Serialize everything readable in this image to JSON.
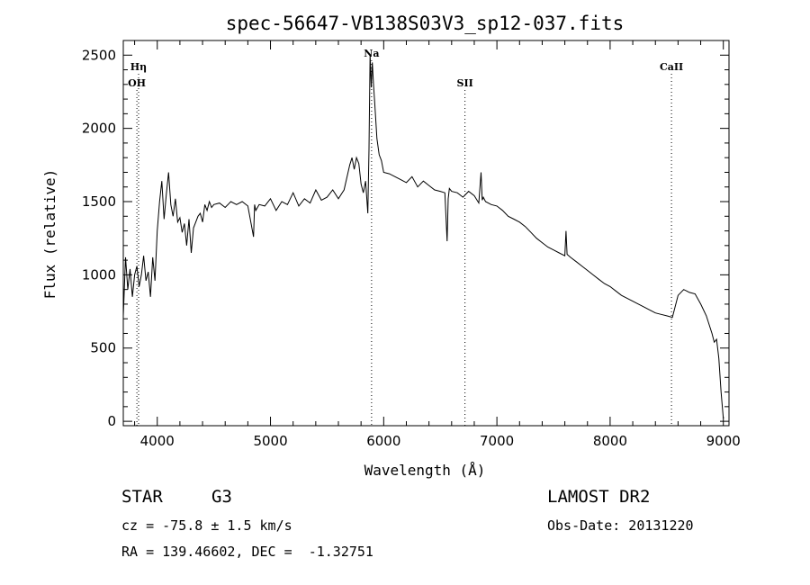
{
  "chart_data": {
    "type": "line",
    "title": "spec-56647-VB138S03V3_sp12-037.fits",
    "xlabel": "Wavelength (Å)",
    "ylabel": "Flux (relative)",
    "xlim": [
      3700,
      9050
    ],
    "ylim": [
      -30,
      2600
    ],
    "x_ticks": [
      4000,
      5000,
      6000,
      7000,
      8000,
      9000
    ],
    "y_ticks": [
      0,
      500,
      1000,
      1500,
      2000,
      2500
    ],
    "grid": false,
    "series": [
      {
        "x": [
          3700,
          3720,
          3740,
          3760,
          3780,
          3800,
          3820,
          3840,
          3860,
          3880,
          3900,
          3920,
          3940,
          3960,
          3980,
          4000,
          4020,
          4040,
          4060,
          4080,
          4100,
          4120,
          4140,
          4160,
          4180,
          4200,
          4220,
          4240,
          4260,
          4280,
          4300,
          4320,
          4340,
          4360,
          4380,
          4400,
          4420,
          4440,
          4460,
          4480,
          4500,
          4550,
          4600,
          4650,
          4700,
          4750,
          4800,
          4850,
          4860,
          4870,
          4900,
          4950,
          5000,
          5050,
          5100,
          5150,
          5200,
          5250,
          5300,
          5350,
          5400,
          5450,
          5500,
          5550,
          5600,
          5650,
          5700,
          5720,
          5740,
          5760,
          5780,
          5800,
          5820,
          5840,
          5860,
          5870,
          5880,
          5890,
          5900,
          5910,
          5920,
          5940,
          5960,
          5980,
          6000,
          6050,
          6100,
          6150,
          6200,
          6250,
          6300,
          6350,
          6400,
          6450,
          6500,
          6540,
          6560,
          6570,
          6580,
          6600,
          6650,
          6700,
          6750,
          6800,
          6840,
          6860,
          6870,
          6880,
          6900,
          6950,
          7000,
          7050,
          7100,
          7150,
          7200,
          7250,
          7300,
          7350,
          7400,
          7450,
          7500,
          7550,
          7600,
          7610,
          7620,
          7650,
          7700,
          7750,
          7800,
          7850,
          7900,
          7950,
          8000,
          8050,
          8100,
          8150,
          8200,
          8250,
          8300,
          8350,
          8400,
          8450,
          8500,
          8550,
          8600,
          8650,
          8700,
          8750,
          8800,
          8850,
          8900,
          8920,
          8940,
          8960,
          8980,
          9000
        ],
        "values": [
          720,
          1120,
          900,
          1040,
          850,
          1000,
          1060,
          920,
          1000,
          1130,
          960,
          1020,
          850,
          1120,
          960,
          1300,
          1500,
          1640,
          1380,
          1550,
          1700,
          1480,
          1400,
          1520,
          1360,
          1390,
          1290,
          1350,
          1200,
          1380,
          1150,
          1320,
          1360,
          1400,
          1420,
          1360,
          1480,
          1440,
          1500,
          1460,
          1480,
          1490,
          1460,
          1500,
          1480,
          1500,
          1470,
          1260,
          1480,
          1440,
          1480,
          1470,
          1520,
          1440,
          1500,
          1480,
          1560,
          1470,
          1520,
          1490,
          1580,
          1510,
          1530,
          1580,
          1520,
          1580,
          1750,
          1800,
          1720,
          1800,
          1760,
          1620,
          1560,
          1640,
          1420,
          1860,
          2500,
          2280,
          2450,
          2300,
          2180,
          1930,
          1820,
          1780,
          1700,
          1690,
          1670,
          1650,
          1630,
          1670,
          1600,
          1640,
          1610,
          1580,
          1570,
          1560,
          1230,
          1520,
          1590,
          1570,
          1560,
          1530,
          1570,
          1540,
          1490,
          1700,
          1510,
          1530,
          1500,
          1480,
          1470,
          1440,
          1400,
          1380,
          1360,
          1330,
          1290,
          1250,
          1220,
          1190,
          1170,
          1150,
          1130,
          1300,
          1140,
          1120,
          1090,
          1060,
          1030,
          1000,
          970,
          940,
          920,
          890,
          860,
          840,
          820,
          800,
          780,
          760,
          740,
          730,
          720,
          710,
          860,
          900,
          880,
          870,
          800,
          720,
          600,
          540,
          560,
          430,
          200,
          20
        ]
      }
    ],
    "line_markers": [
      {
        "label": "OH",
        "x": 3820
      },
      {
        "label": "Hη",
        "x": 3835
      },
      {
        "label": "Na",
        "x": 5893
      },
      {
        "label": "SII",
        "x": 6718
      },
      {
        "label": "CaII",
        "x": 8542
      }
    ]
  },
  "info": {
    "object_class": "STAR",
    "subclass": "G3",
    "survey": "LAMOST DR2",
    "cz": "cz = -75.8 ± 1.5 km/s",
    "obs_date": "Obs-Date: 20131220",
    "coords": "RA = 139.46602, DEC =  -1.32751"
  },
  "colors": {
    "line": "#000000",
    "background": "#ffffff",
    "marker": "#000000"
  }
}
